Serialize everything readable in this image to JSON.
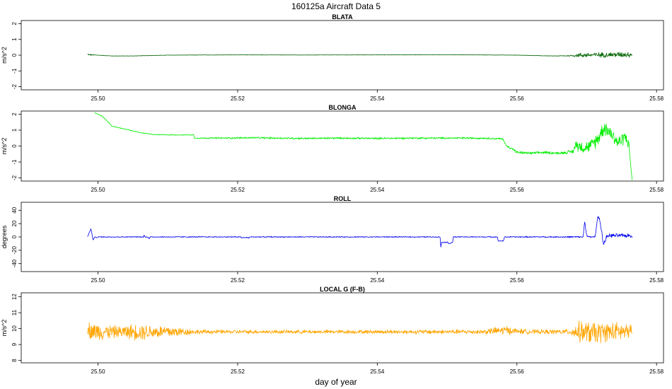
{
  "figure": {
    "title": "160125a   Aircraft Data 5",
    "xlabel": "day of year"
  },
  "chart_data": [
    {
      "type": "line",
      "title": "BLATA",
      "ylabel": "m/s^2",
      "xlim": [
        25.489,
        25.581
      ],
      "ylim": [
        -2.2,
        2.2
      ],
      "yticks": [
        -2,
        -1,
        0,
        1,
        2
      ],
      "xticks": [
        25.5,
        25.52,
        25.54,
        25.56,
        25.58
      ],
      "xtick_labels": [
        "25.50",
        "25.52",
        "25.54",
        "25.56",
        "25.58"
      ],
      "grid": false,
      "color": "#006400",
      "series": [
        {
          "x": [
            25.4985,
            25.499,
            25.5,
            25.502,
            25.505,
            25.51,
            25.52,
            25.53,
            25.54,
            25.55,
            25.56,
            25.565,
            25.5675,
            25.569,
            25.5765
          ],
          "y": [
            0.05,
            0.02,
            0.0,
            -0.05,
            -0.05,
            0.0,
            0.02,
            0.01,
            0.02,
            0.03,
            0.0,
            -0.05,
            -0.04,
            0.0,
            0.05
          ],
          "noise": [
            0.04,
            0.03,
            0.01,
            0.01,
            0.01,
            0.01,
            0.01,
            0.01,
            0.01,
            0.01,
            0.01,
            0.01,
            0.03,
            0.12,
            0.15
          ]
        }
      ]
    },
    {
      "type": "line",
      "title": "BLONGA",
      "ylabel": "m/s^2",
      "xlim": [
        25.489,
        25.581
      ],
      "ylim": [
        -2.2,
        2.2
      ],
      "yticks": [
        -2,
        -1,
        0,
        1,
        2
      ],
      "xticks": [
        25.5,
        25.52,
        25.54,
        25.56,
        25.58
      ],
      "xtick_labels": [
        "25.50",
        "25.52",
        "25.54",
        "25.56",
        "25.58"
      ],
      "grid": false,
      "color": "#00ee00",
      "series": [
        {
          "x": [
            25.4995,
            25.5005,
            25.5015,
            25.502,
            25.504,
            25.506,
            25.508,
            25.5105,
            25.5137,
            25.5138,
            25.518,
            25.522,
            25.526,
            25.53,
            25.535,
            25.54,
            25.545,
            25.55,
            25.555,
            25.558,
            25.5585,
            25.5595,
            25.56,
            25.562,
            25.564,
            25.566,
            25.568,
            25.5685,
            25.5695,
            25.5705,
            25.5715,
            25.5725,
            25.5735,
            25.5745,
            25.5755,
            25.576,
            25.5765
          ],
          "y": [
            2.1,
            1.9,
            1.5,
            1.25,
            1.05,
            0.85,
            0.72,
            0.7,
            0.7,
            0.5,
            0.5,
            0.52,
            0.5,
            0.48,
            0.5,
            0.48,
            0.5,
            0.5,
            0.5,
            0.45,
            0.0,
            -0.2,
            -0.4,
            -0.45,
            -0.4,
            -0.45,
            -0.35,
            0.1,
            -0.1,
            0.0,
            0.4,
            1.2,
            0.8,
            0.2,
            0.6,
            0.2,
            -2.1
          ],
          "noise": [
            0.02,
            0.02,
            0.02,
            0.02,
            0.02,
            0.02,
            0.02,
            0.02,
            0.02,
            0.03,
            0.05,
            0.05,
            0.05,
            0.05,
            0.05,
            0.05,
            0.05,
            0.05,
            0.05,
            0.05,
            0.05,
            0.07,
            0.07,
            0.07,
            0.07,
            0.07,
            0.1,
            0.3,
            0.3,
            0.3,
            0.4,
            0.4,
            0.4,
            0.35,
            0.35,
            0.3,
            0.05
          ]
        }
      ]
    },
    {
      "type": "line",
      "title": "ROLL",
      "ylabel": "degrees",
      "xlim": [
        25.489,
        25.581
      ],
      "ylim": [
        -52,
        52
      ],
      "yticks": [
        -40,
        -20,
        0,
        20,
        40
      ],
      "xticks": [
        25.5,
        25.52,
        25.54,
        25.56,
        25.58
      ],
      "xtick_labels": [
        "25.50",
        "25.52",
        "25.54",
        "25.56",
        "25.58"
      ],
      "grid": false,
      "color": "#0000ee",
      "series": [
        {
          "x": [
            25.4985,
            25.4988,
            25.499,
            25.4993,
            25.4995,
            25.4998,
            25.5,
            25.5065,
            25.5066,
            25.5067,
            25.5072,
            25.5073,
            25.5075,
            25.5205,
            25.5206,
            25.5207,
            25.5215,
            25.5216,
            25.5217,
            25.549,
            25.5491,
            25.5492,
            25.55,
            25.5501,
            25.5502,
            25.5508,
            25.5509,
            25.551,
            25.5572,
            25.5573,
            25.5574,
            25.558,
            25.5581,
            25.5582,
            25.5695,
            25.5697,
            25.57,
            25.5702,
            25.5712,
            25.5716,
            25.5718,
            25.5722,
            25.5724,
            25.5727,
            25.573,
            25.5765
          ],
          "y": [
            0,
            8,
            12,
            -5,
            0,
            -1,
            0,
            0,
            3,
            0,
            0,
            -3,
            0,
            0,
            -2,
            -1,
            -1,
            -2,
            0,
            0,
            -16,
            -8,
            -8,
            -8,
            -10,
            -8,
            0,
            0,
            0,
            -6,
            -6,
            -6,
            -6,
            0,
            0,
            24,
            2,
            0,
            0,
            31,
            28,
            5,
            -12,
            -4,
            2,
            2
          ],
          "noise": [
            0.5,
            0.5,
            0.5,
            0.5,
            0.5,
            0.5,
            0.6,
            0.6,
            0.6,
            0.6,
            0.6,
            0.6,
            0.6,
            0.6,
            0.6,
            0.6,
            0.6,
            0.6,
            0.6,
            0.6,
            0.6,
            0.6,
            0.6,
            0.6,
            0.6,
            0.6,
            0.6,
            0.6,
            0.6,
            0.6,
            0.6,
            0.6,
            0.6,
            0.6,
            1.0,
            1.0,
            1.0,
            1.0,
            1.5,
            1.5,
            1.5,
            2.5,
            2.5,
            2.5,
            2.5,
            2.5
          ]
        }
      ]
    },
    {
      "type": "line",
      "title": "LOCAL G (F-B)",
      "ylabel": "m/s^2",
      "xlim": [
        25.489,
        25.581
      ],
      "ylim": [
        7.85,
        12.25
      ],
      "yticks": [
        8,
        9,
        10,
        11,
        12
      ],
      "xticks": [
        25.5,
        25.52,
        25.54,
        25.56,
        25.58
      ],
      "xtick_labels": [
        "25.50",
        "25.52",
        "25.54",
        "25.56",
        "25.58"
      ],
      "grid": false,
      "color": "#ffa500",
      "series": [
        {
          "x": [
            25.4985,
            25.5,
            25.503,
            25.506,
            25.508,
            25.51,
            25.5115,
            25.514,
            25.52,
            25.53,
            25.54,
            25.55,
            25.555,
            25.5585,
            25.5595,
            25.562,
            25.565,
            25.5675,
            25.569,
            25.5715,
            25.5725,
            25.5745,
            25.5765
          ],
          "y": [
            9.9,
            9.8,
            9.8,
            9.8,
            9.8,
            9.8,
            9.8,
            9.8,
            9.8,
            9.8,
            9.8,
            9.8,
            9.8,
            9.9,
            9.85,
            9.8,
            9.8,
            9.8,
            9.8,
            9.7,
            9.8,
            9.8,
            9.8
          ],
          "noise": [
            0.45,
            0.45,
            0.3,
            0.45,
            0.35,
            0.35,
            0.25,
            0.12,
            0.1,
            0.1,
            0.1,
            0.12,
            0.12,
            0.25,
            0.15,
            0.12,
            0.12,
            0.15,
            0.55,
            0.6,
            0.5,
            0.5,
            0.4
          ]
        }
      ]
    }
  ]
}
